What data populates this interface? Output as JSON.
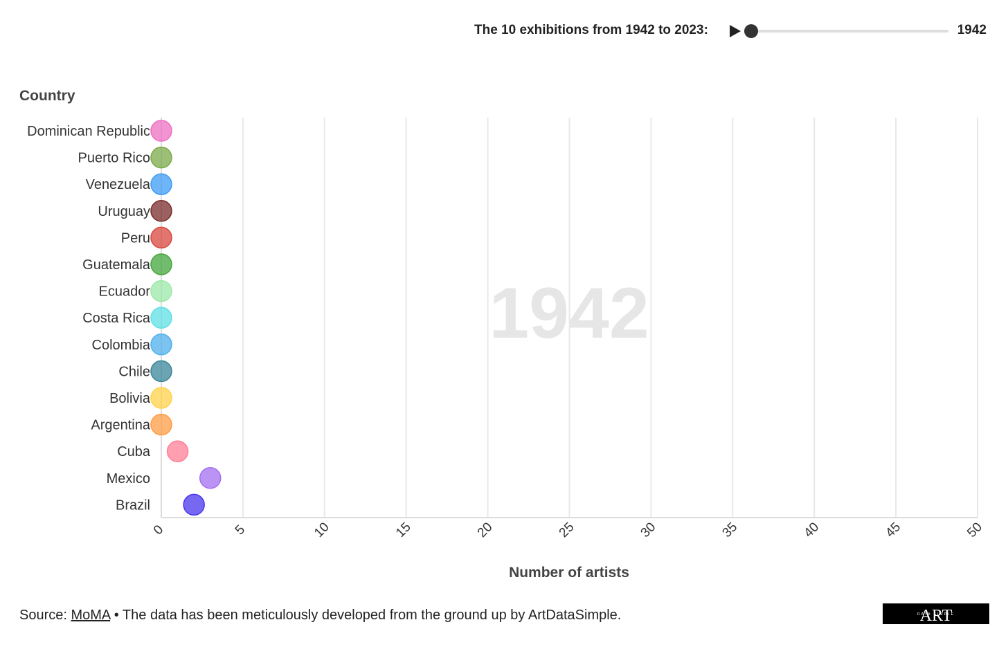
{
  "timeline": {
    "label": "The 10 exhibitions from 1942 to 2023:",
    "value": "1942",
    "position": 0
  },
  "chart_data": {
    "type": "scatter",
    "title": "",
    "ylabel": "Country",
    "xlabel": "Number of artists",
    "xlim": [
      0,
      50
    ],
    "x_ticks": [
      "0",
      "5",
      "10",
      "15",
      "20",
      "25",
      "30",
      "35",
      "40",
      "45",
      "50"
    ],
    "grid": true,
    "watermark": "1942",
    "points": [
      {
        "country": "Dominican Republic",
        "value": 0,
        "color": "#ee6fc3"
      },
      {
        "country": "Puerto Rico",
        "value": 0,
        "color": "#7aaa48"
      },
      {
        "country": "Venezuela",
        "value": 0,
        "color": "#3d9cf5"
      },
      {
        "country": "Uruguay",
        "value": 0,
        "color": "#7a2b2b"
      },
      {
        "country": "Peru",
        "value": 0,
        "color": "#d9473f"
      },
      {
        "country": "Guatemala",
        "value": 0,
        "color": "#43a63c"
      },
      {
        "country": "Ecuador",
        "value": 0,
        "color": "#9be8a8"
      },
      {
        "country": "Costa Rica",
        "value": 0,
        "color": "#5fe0e6"
      },
      {
        "country": "Colombia",
        "value": 0,
        "color": "#4fb0ee"
      },
      {
        "country": "Chile",
        "value": 0,
        "color": "#3a8598"
      },
      {
        "country": "Bolivia",
        "value": 0,
        "color": "#ffd24a"
      },
      {
        "country": "Argentina",
        "value": 0,
        "color": "#ff9c45"
      },
      {
        "country": "Cuba",
        "value": 1,
        "color": "#ff7f96"
      },
      {
        "country": "Mexico",
        "value": 3,
        "color": "#a46ff0"
      },
      {
        "country": "Brazil",
        "value": 2,
        "color": "#4a35ee"
      }
    ]
  },
  "footer": {
    "source_prefix": "Source: ",
    "source_link": "MoMA",
    "source_suffix": " • The data has been meticulously developed from the ground up by ArtDataSimple.",
    "logo_text": "ART",
    "logo_subtext": "DATA SIMPLE"
  }
}
